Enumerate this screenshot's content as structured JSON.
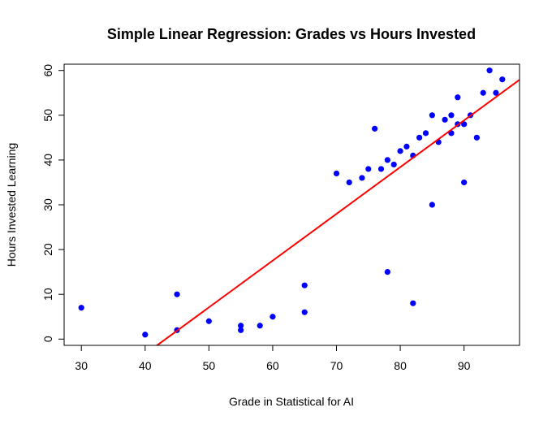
{
  "chart_data": {
    "type": "scatter",
    "title": "Simple Linear Regression: Grades vs Hours Invested",
    "xlabel": "Grade in Statistical for AI",
    "ylabel": "Hours Invested Learning",
    "xlim": [
      27.3,
      98.7
    ],
    "ylim": [
      -1.4,
      61.4
    ],
    "xticks": [
      30,
      40,
      50,
      60,
      70,
      80,
      90
    ],
    "yticks": [
      0,
      10,
      20,
      30,
      40,
      50,
      60
    ],
    "grid": false,
    "legend": "none",
    "point_color": "#0000ff",
    "line_color": "#ff0000",
    "points": [
      {
        "x": 30,
        "y": 7
      },
      {
        "x": 40,
        "y": 1
      },
      {
        "x": 45,
        "y": 2
      },
      {
        "x": 45,
        "y": 10
      },
      {
        "x": 50,
        "y": 4
      },
      {
        "x": 55,
        "y": 2
      },
      {
        "x": 55,
        "y": 3
      },
      {
        "x": 58,
        "y": 3
      },
      {
        "x": 60,
        "y": 5
      },
      {
        "x": 65,
        "y": 6
      },
      {
        "x": 65,
        "y": 12
      },
      {
        "x": 70,
        "y": 37
      },
      {
        "x": 72,
        "y": 35
      },
      {
        "x": 74,
        "y": 36
      },
      {
        "x": 75,
        "y": 38
      },
      {
        "x": 76,
        "y": 47
      },
      {
        "x": 77,
        "y": 38
      },
      {
        "x": 78,
        "y": 40
      },
      {
        "x": 78,
        "y": 15
      },
      {
        "x": 79,
        "y": 39
      },
      {
        "x": 80,
        "y": 42
      },
      {
        "x": 81,
        "y": 43
      },
      {
        "x": 82,
        "y": 41
      },
      {
        "x": 82,
        "y": 8
      },
      {
        "x": 83,
        "y": 45
      },
      {
        "x": 84,
        "y": 46
      },
      {
        "x": 85,
        "y": 50
      },
      {
        "x": 85,
        "y": 30
      },
      {
        "x": 86,
        "y": 44
      },
      {
        "x": 87,
        "y": 49
      },
      {
        "x": 88,
        "y": 50
      },
      {
        "x": 88,
        "y": 46
      },
      {
        "x": 89,
        "y": 54
      },
      {
        "x": 89,
        "y": 48
      },
      {
        "x": 90,
        "y": 48
      },
      {
        "x": 90,
        "y": 35
      },
      {
        "x": 91,
        "y": 50
      },
      {
        "x": 92,
        "y": 45
      },
      {
        "x": 93,
        "y": 55
      },
      {
        "x": 94,
        "y": 60
      },
      {
        "x": 95,
        "y": 55
      },
      {
        "x": 96,
        "y": 58
      }
    ],
    "regression_line": {
      "slope": 1.0438,
      "intercept": -45.1
    }
  }
}
